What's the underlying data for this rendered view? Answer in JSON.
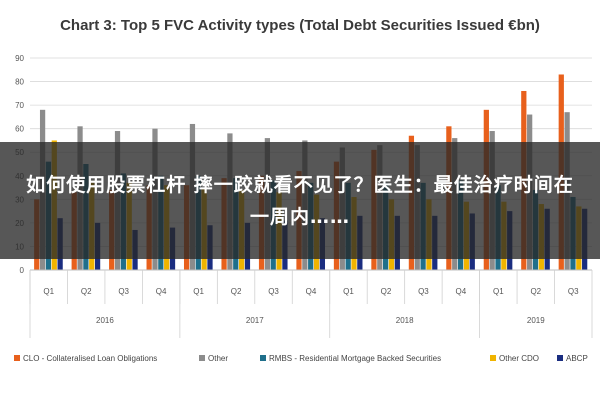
{
  "chart_data": {
    "type": "bar",
    "title": "Chart 3: Top 5 FVC Activity types (Total Debt Securities Issued €bn)",
    "ylim": [
      0,
      90
    ],
    "yticks": [
      0,
      10,
      20,
      30,
      40,
      50,
      60,
      70,
      80,
      90
    ],
    "grid": true,
    "legend_position": "bottom",
    "categories": [
      "Q1",
      "Q2",
      "Q3",
      "Q4",
      "Q1",
      "Q2",
      "Q3",
      "Q4",
      "Q1",
      "Q2",
      "Q3",
      "Q4",
      "Q1",
      "Q2",
      "Q3"
    ],
    "years": [
      {
        "label": "2016",
        "start": 0,
        "count": 4
      },
      {
        "label": "2017",
        "start": 4,
        "count": 4
      },
      {
        "label": "2018",
        "start": 8,
        "count": 4
      },
      {
        "label": "2019",
        "start": 12,
        "count": 3
      }
    ],
    "series": [
      {
        "name": "CLO - Collateralised Loan Obligations",
        "color": "#e8601c",
        "values": [
          30,
          33,
          34,
          36,
          36,
          39,
          40,
          42,
          46,
          51,
          57,
          61,
          68,
          76,
          83
        ]
      },
      {
        "name": "Other",
        "color": "#8c8c8c",
        "values": [
          68,
          61,
          59,
          60,
          62,
          58,
          56,
          55,
          52,
          53,
          53,
          56,
          59,
          66,
          67
        ]
      },
      {
        "name": "RMBS - Residential Mortgage Backed Securities",
        "color": "#1f6f8b",
        "values": [
          46,
          45,
          41,
          40,
          40,
          39,
          38,
          37,
          37,
          37,
          37,
          38,
          36,
          34,
          31
        ]
      },
      {
        "name": "Other CDO",
        "color": "#f0b400",
        "values": [
          55,
          38,
          37,
          36,
          35,
          34,
          33,
          32,
          31,
          30,
          30,
          29,
          29,
          28,
          27
        ]
      },
      {
        "name": "ABCP",
        "color": "#1a2d80",
        "values": [
          22,
          20,
          17,
          18,
          19,
          20,
          21,
          22,
          23,
          23,
          23,
          24,
          25,
          26,
          26
        ]
      }
    ]
  },
  "overlay": {
    "text": "如何使用股票杠杆 摔一跤就看不见了？医生：最佳治疗时间在一周内……"
  }
}
